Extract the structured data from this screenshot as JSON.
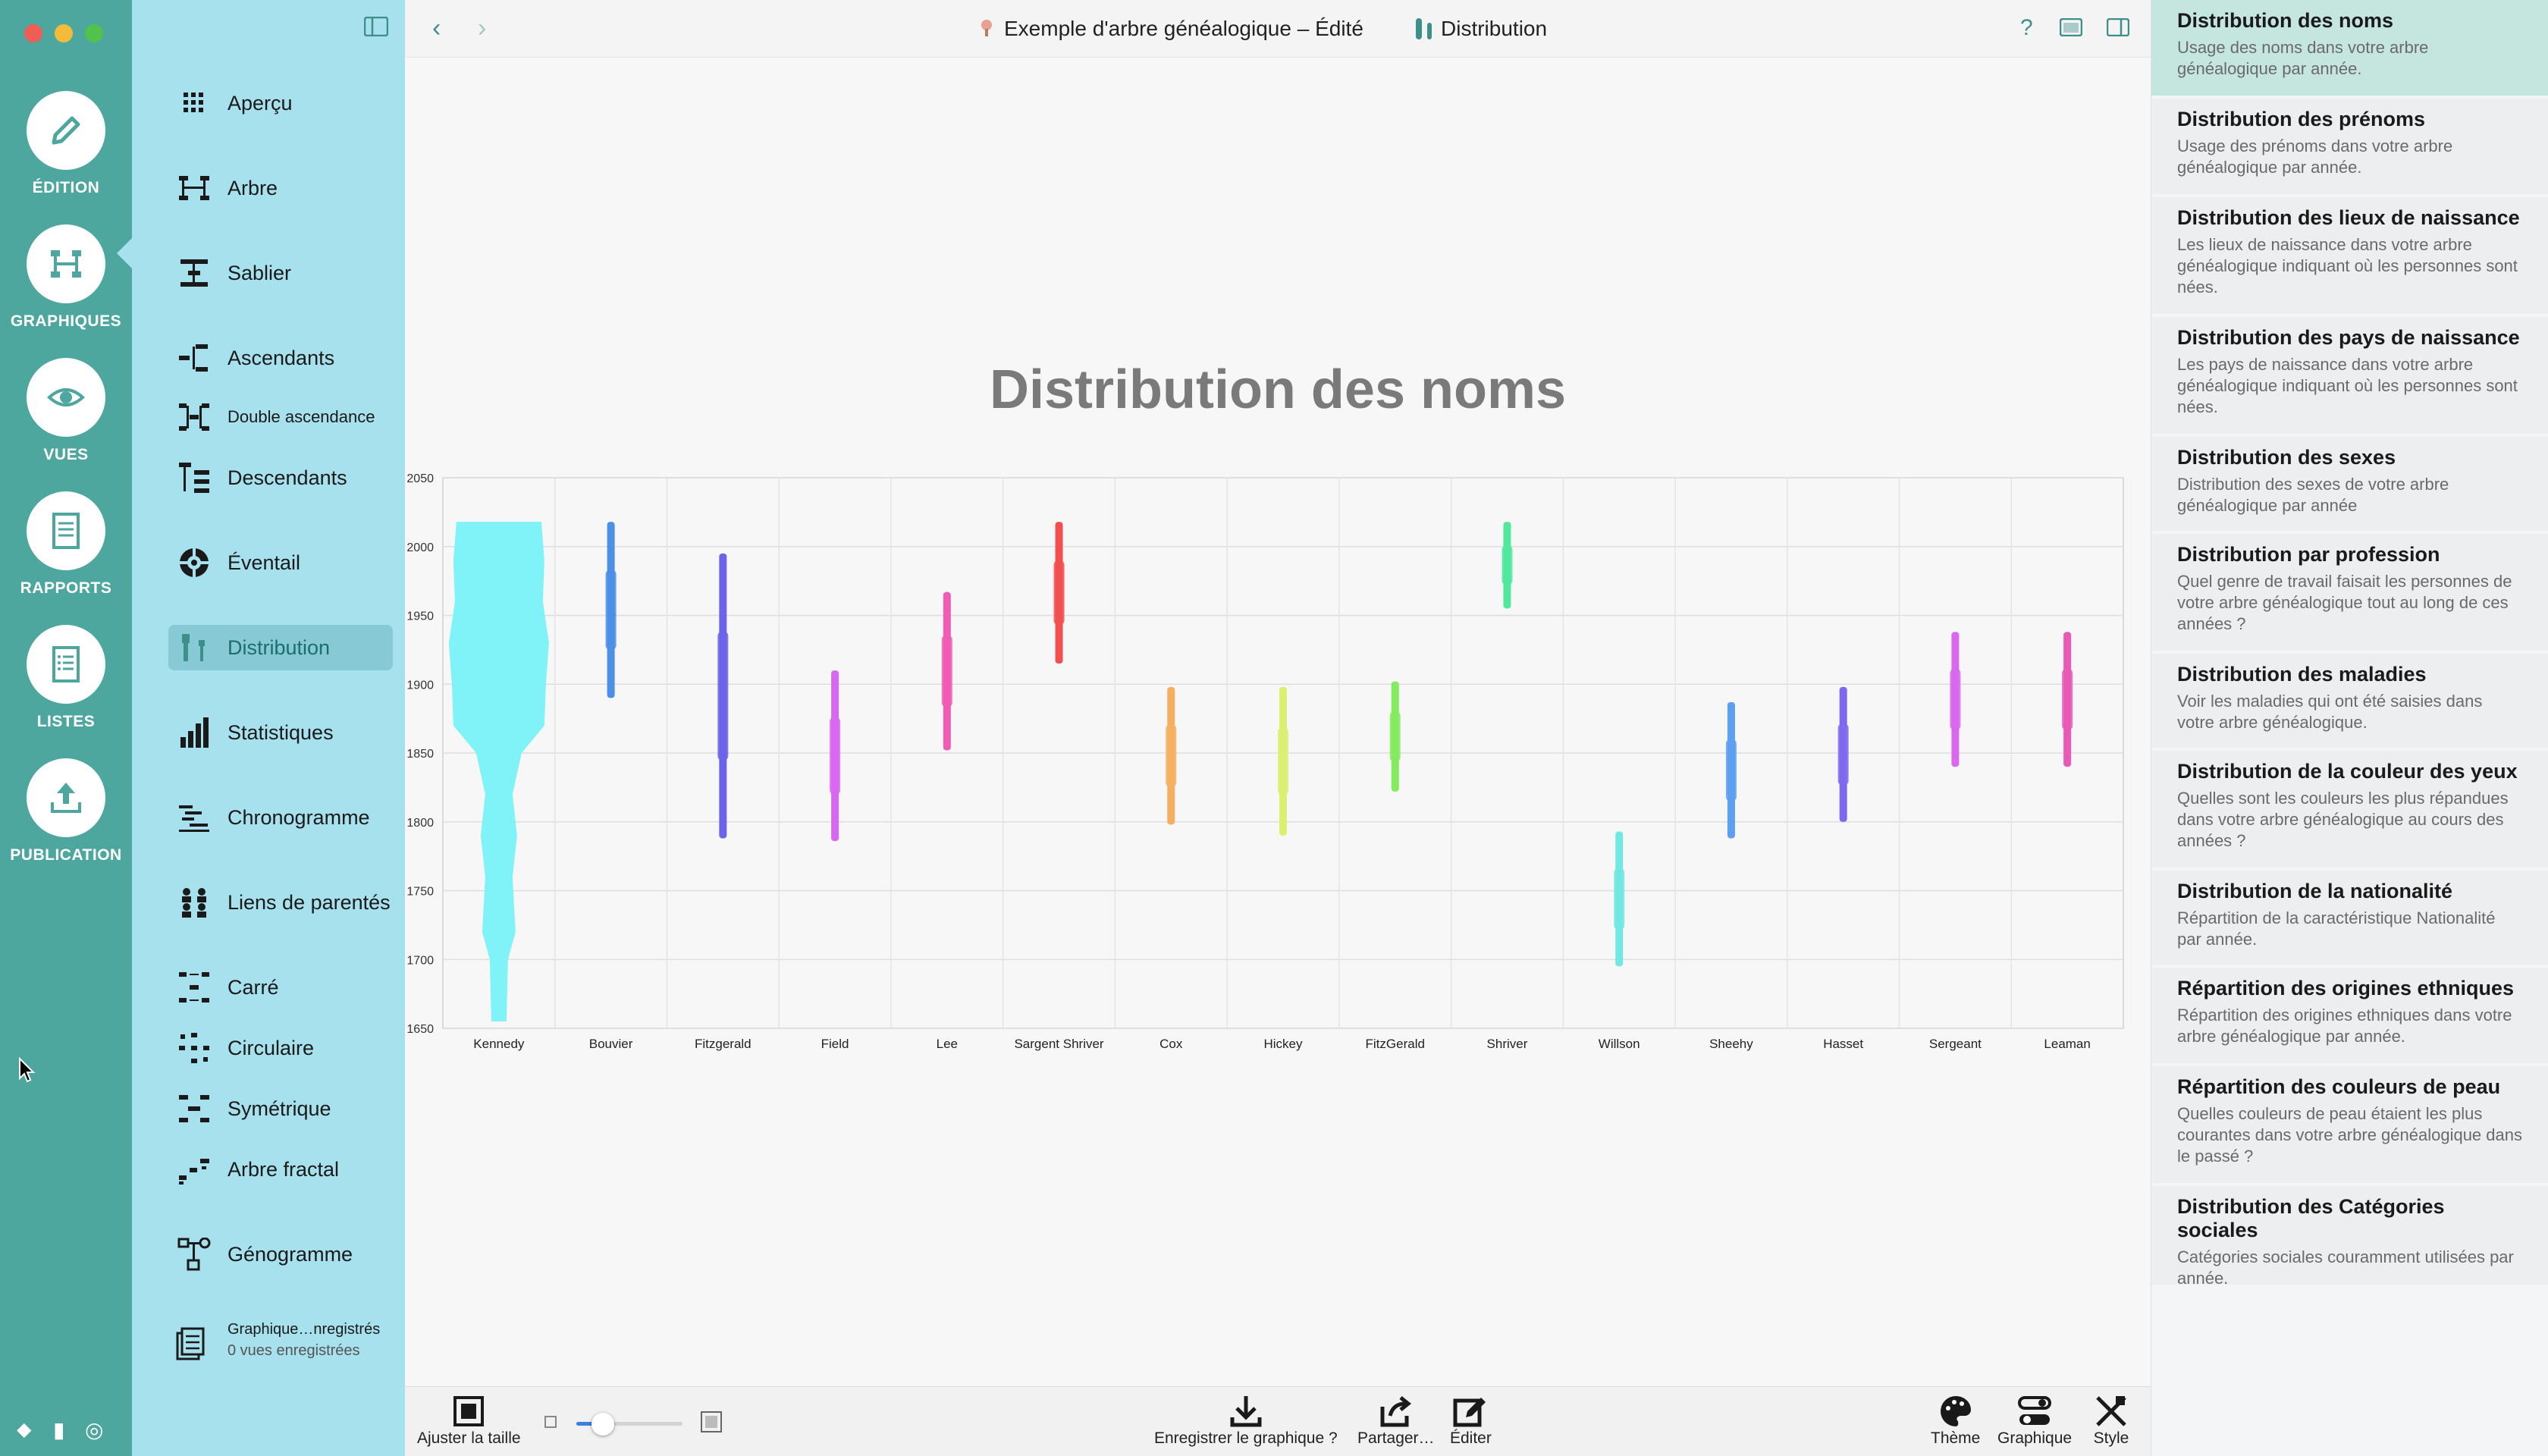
{
  "rail": {
    "items": [
      {
        "label": "ÉDITION",
        "icon": "pencil-icon"
      },
      {
        "label": "GRAPHIQUES",
        "icon": "tree-chart-icon"
      },
      {
        "label": "VUES",
        "icon": "eye-icon"
      },
      {
        "label": "RAPPORTS",
        "icon": "report-icon"
      },
      {
        "label": "LISTES",
        "icon": "list-icon"
      },
      {
        "label": "PUBLICATION",
        "icon": "upload-icon"
      }
    ]
  },
  "sidebar": {
    "items": [
      {
        "label": "Aperçu",
        "icon": "grid-icon"
      },
      {
        "label": "Arbre",
        "icon": "tree-icon"
      },
      {
        "label": "Sablier",
        "icon": "hourglass-icon"
      },
      {
        "label": "Ascendants",
        "icon": "ancestors-icon"
      },
      {
        "label": "Double ascendance",
        "icon": "double-ancestry-icon"
      },
      {
        "label": "Descendants",
        "icon": "descendants-icon"
      },
      {
        "label": "Éventail",
        "icon": "fan-icon"
      },
      {
        "label": "Distribution",
        "icon": "distribution-icon"
      },
      {
        "label": "Statistiques",
        "icon": "bar-stats-icon"
      },
      {
        "label": "Chronogramme",
        "icon": "timeline-icon"
      },
      {
        "label": "Liens de parentés",
        "icon": "relations-icon"
      },
      {
        "label": "Carré",
        "icon": "square-icon"
      },
      {
        "label": "Circulaire",
        "icon": "circular-icon"
      },
      {
        "label": "Symétrique",
        "icon": "symmetric-icon"
      },
      {
        "label": "Arbre fractal",
        "icon": "fractal-icon"
      },
      {
        "label": "Génogramme",
        "icon": "genogram-icon"
      }
    ],
    "saved": {
      "label": "Graphique…nregistrés",
      "sub": "0 vues enregistrées"
    }
  },
  "toolbar": {
    "doc_title": "Exemple d'arbre généalogique – Édité",
    "doc_sub": "Distribution"
  },
  "chart_data": {
    "type": "distribution",
    "title": "Distribution des noms",
    "ylim": [
      1650,
      2050
    ],
    "yticks": [
      "2050",
      "2000",
      "1950",
      "1900",
      "1850",
      "1800",
      "1750",
      "1700",
      "1650"
    ],
    "categories": [
      "Kennedy",
      "Bouvier",
      "Fitzgerald",
      "Field",
      "Lee",
      "Sargent Shriver",
      "Cox",
      "Hickey",
      "FitzGerald",
      "Shriver",
      "Willson",
      "Sheehy",
      "Hasset",
      "Sergeant",
      "Leaman"
    ],
    "colors": [
      "#7ff3f7",
      "#4c8fe6",
      "#6b63e8",
      "#d868ee",
      "#f05cb3",
      "#f2504f",
      "#f4b060",
      "#dcef70",
      "#83ec5e",
      "#4fe89c",
      "#72e8e4",
      "#5f9ff0",
      "#8068ee",
      "#d868ee",
      "#e85ab6"
    ],
    "ranges": [
      [
        1655,
        2018
      ],
      [
        1890,
        2018
      ],
      [
        1788,
        1995
      ],
      [
        1786,
        1910
      ],
      [
        1852,
        1967
      ],
      [
        1915,
        2018
      ],
      [
        1798,
        1898
      ],
      [
        1790,
        1898
      ],
      [
        1822,
        1902
      ],
      [
        1955,
        2018
      ],
      [
        1695,
        1793
      ],
      [
        1788,
        1887
      ],
      [
        1800,
        1898
      ],
      [
        1840,
        1938
      ],
      [
        1840,
        1938
      ]
    ]
  },
  "bottom": {
    "fit": "Ajuster la taille",
    "zoom": 0.25,
    "save": "Enregistrer le graphique ?",
    "share": "Partager…",
    "edit": "Éditer",
    "theme": "Thème",
    "graph": "Graphique",
    "style": "Style"
  },
  "right_panel": {
    "items": [
      {
        "title": "Distribution des noms",
        "desc": "Usage des noms dans votre arbre généalogique par année."
      },
      {
        "title": "Distribution des prénoms",
        "desc": "Usage des prénoms dans votre arbre généalogique par année."
      },
      {
        "title": "Distribution des lieux de naissance",
        "desc": "Les lieux de naissance dans votre arbre généalogique indiquant où les personnes sont nées."
      },
      {
        "title": "Distribution des pays de naissance",
        "desc": "Les pays de naissance dans votre arbre généalogique indiquant où les personnes sont nées."
      },
      {
        "title": "Distribution des sexes",
        "desc": "Distribution des sexes de votre arbre généalogique par année"
      },
      {
        "title": "Distribution par profession",
        "desc": "Quel genre de travail faisait les personnes de votre arbre généalogique tout au long de ces années ?"
      },
      {
        "title": "Distribution des maladies",
        "desc": "Voir les maladies qui ont été saisies dans votre arbre généalogique."
      },
      {
        "title": "Distribution de la couleur des yeux",
        "desc": "Quelles sont les couleurs les plus répandues dans votre arbre généalogique au cours des années ?"
      },
      {
        "title": "Distribution de la nationalité",
        "desc": "Répartition de la caractéristique Nationalité par année."
      },
      {
        "title": "Répartition des origines ethniques",
        "desc": "Répartition des origines ethniques dans votre arbre généalogique par année."
      },
      {
        "title": "Répartition des couleurs de peau",
        "desc": "Quelles couleurs de peau étaient les plus courantes dans votre arbre généalogique dans le passé ?"
      },
      {
        "title": "Distribution des Catégories sociales",
        "desc": "Catégories sociales couramment utilisées par année."
      }
    ]
  }
}
